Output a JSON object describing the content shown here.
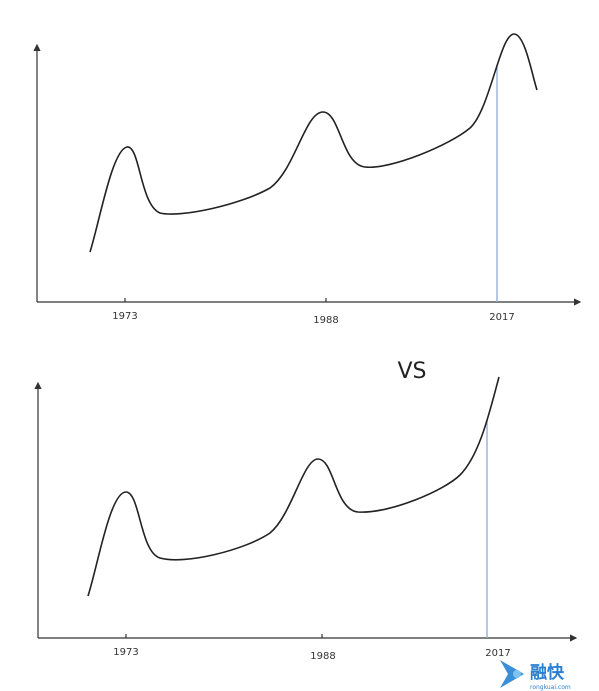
{
  "charts": [
    {
      "x_labels": [
        "1973",
        "1988",
        "2017"
      ]
    },
    {
      "x_labels": [
        "1973",
        "1988",
        "2017"
      ]
    }
  ],
  "separator": "VS",
  "watermark": {
    "name": "融快",
    "url": "rongkuai.com"
  }
}
